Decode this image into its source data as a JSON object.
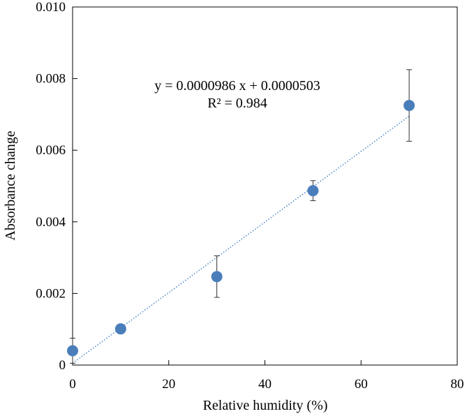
{
  "chart_data": {
    "type": "scatter",
    "xlabel": "Relative humidity (%)",
    "ylabel": "Absorbance change",
    "xlim": [
      0,
      80
    ],
    "ylim": [
      0,
      0.01
    ],
    "x_ticks": [
      0,
      20,
      40,
      60,
      80
    ],
    "x_tick_labels": [
      "0",
      "20",
      "40",
      "60",
      "80"
    ],
    "y_ticks": [
      0,
      0.002,
      0.004,
      0.006,
      0.008,
      0.01
    ],
    "y_tick_labels": [
      "0",
      "0.002",
      "0.004",
      "0.006",
      "0.008",
      "0.010"
    ],
    "grid": false,
    "series": [
      {
        "x": [
          0,
          10,
          30,
          50,
          70
        ],
        "y": [
          0.0004,
          0.00101,
          0.00247,
          0.00487,
          0.00725
        ],
        "error": [
          0.00035,
          0.0,
          0.00058,
          0.00028,
          0.001
        ],
        "color": "#4a7ebb"
      }
    ],
    "trendline": {
      "type": "linear",
      "slope": 9.86e-05,
      "intercept": 5.03e-05,
      "x_range": [
        0,
        70
      ],
      "color": "#4a86c6",
      "style": "dotted"
    },
    "annotation": {
      "equation": "y = 0.0000986 x + 0.0000503",
      "r_squared": "R² = 0.984"
    }
  }
}
